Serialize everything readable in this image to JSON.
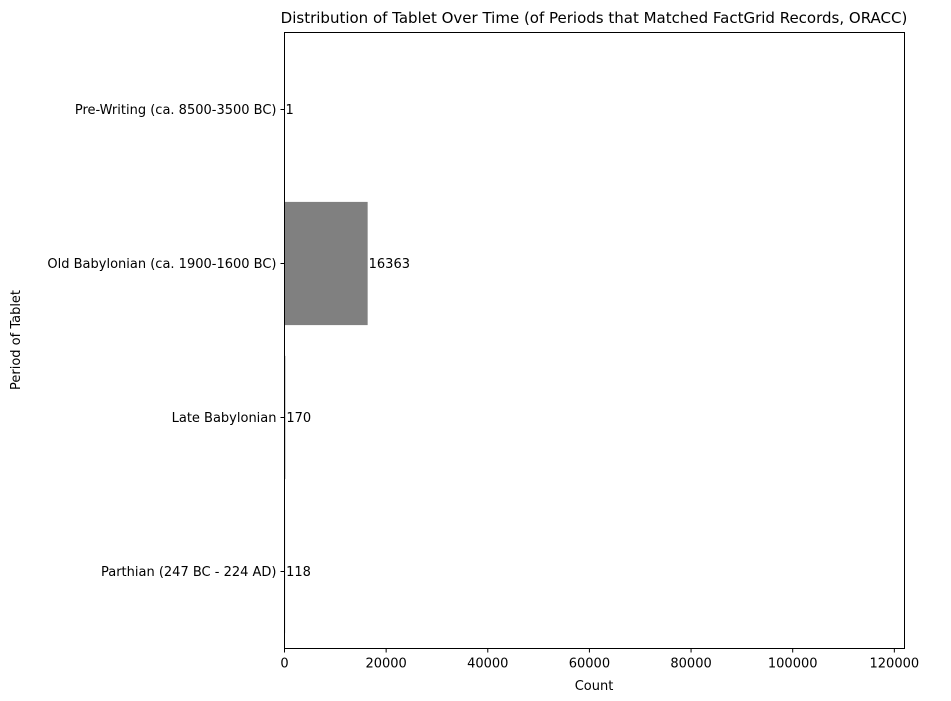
{
  "chart_data": {
    "type": "bar",
    "orientation": "horizontal",
    "title": "Distribution of Tablet Over Time (of Periods that Matched FactGrid Records, ORACC)",
    "xlabel": "Count",
    "ylabel": "Period of Tablet",
    "categories": [
      "Pre-Writing (ca. 8500-3500 BC)",
      "Old Babylonian (ca. 1900-1600 BC)",
      "Late Babylonian",
      "Parthian (247 BC - 224 AD)"
    ],
    "values": [
      1,
      16363,
      170,
      118
    ],
    "data_labels": [
      "1",
      "16363",
      "170",
      "118"
    ],
    "xlim": [
      0,
      122000
    ],
    "xticks": [
      0,
      20000,
      40000,
      60000,
      80000,
      100000,
      120000
    ],
    "xtick_labels": [
      "0",
      "20000",
      "40000",
      "60000",
      "80000",
      "100000",
      "120000"
    ],
    "bar_color": "#808080",
    "grid": false,
    "legend": "none"
  }
}
